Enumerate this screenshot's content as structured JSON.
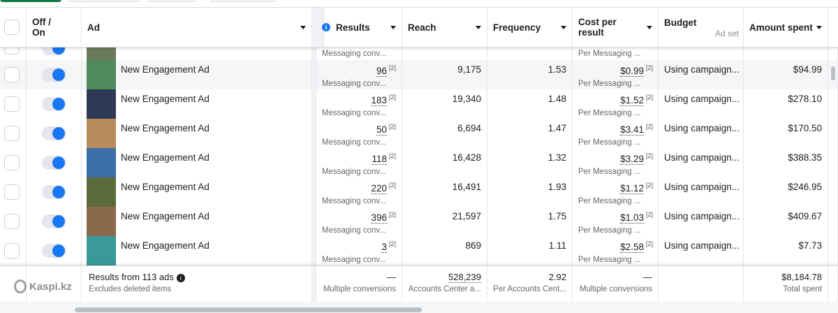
{
  "header": {
    "off_on": "Off / On",
    "ad": "Ad",
    "results": "Results",
    "reach": "Reach",
    "frequency": "Frequency",
    "cost_per_result": "Cost per result",
    "budget": "Budget",
    "budget_sub": "Ad set",
    "amount_spent": "Amount spent"
  },
  "partial_row": {
    "results_sub": "Messaging conv...",
    "cost_sub": "Per Messaging ..."
  },
  "rows": [
    {
      "name": "New Engagement Ad",
      "results": "96",
      "results_sub": "Messaging conv...",
      "reach": "9,175",
      "frequency": "1.53",
      "cost": "$0.99",
      "cost_sub": "Per Messaging ...",
      "budget": "Using campaign...",
      "spent": "$94.99",
      "thumb": "#4f8a5a",
      "note": "[2]"
    },
    {
      "name": "New Engagement Ad",
      "results": "183",
      "results_sub": "Messaging conv...",
      "reach": "19,340",
      "frequency": "1.48",
      "cost": "$1.52",
      "cost_sub": "Per Messaging ...",
      "budget": "Using campaign...",
      "spent": "$278.10",
      "thumb": "#2e3a55",
      "note": "[2]"
    },
    {
      "name": "New Engagement Ad",
      "results": "50",
      "results_sub": "Messaging conv...",
      "reach": "6,694",
      "frequency": "1.47",
      "cost": "$3.41",
      "cost_sub": "Per Messaging ...",
      "budget": "Using campaign...",
      "spent": "$170.50",
      "thumb": "#b98a5a",
      "note": "[2]"
    },
    {
      "name": "New Engagement Ad",
      "results": "118",
      "results_sub": "Messaging conv...",
      "reach": "16,428",
      "frequency": "1.32",
      "cost": "$3.29",
      "cost_sub": "Per Messaging ...",
      "budget": "Using campaign...",
      "spent": "$388.35",
      "thumb": "#3a6fa8",
      "note": "[2]"
    },
    {
      "name": "New Engagement Ad",
      "results": "220",
      "results_sub": "Messaging conv...",
      "reach": "16,491",
      "frequency": "1.93",
      "cost": "$1.12",
      "cost_sub": "Per Messaging ...",
      "budget": "Using campaign...",
      "spent": "$246.95",
      "thumb": "#5b6b3a",
      "note": "[2]"
    },
    {
      "name": "New Engagement Ad",
      "results": "396",
      "results_sub": "Messaging conv...",
      "reach": "21,597",
      "frequency": "1.75",
      "cost": "$1.03",
      "cost_sub": "Per Messaging ...",
      "budget": "Using campaign...",
      "spent": "$409.67",
      "thumb": "#8a6a4a",
      "note": "[2]"
    },
    {
      "name": "New Engagement Ad",
      "results": "3",
      "results_sub": "Messaging conv...",
      "reach": "869",
      "frequency": "1.11",
      "cost": "$2.58",
      "cost_sub": "Per Messaging ...",
      "budget": "Using campaign...",
      "spent": "$7.73",
      "thumb": "#3a9a9a",
      "note": "[2]"
    }
  ],
  "footer": {
    "title": "Results from 113 ads",
    "subtitle": "Excludes deleted items",
    "results": "—",
    "results_sub": "Multiple conversions",
    "reach": "528,239",
    "reach_sub": "Accounts Center a...",
    "frequency": "2.92",
    "frequency_sub": "Per Accounts Cent...",
    "cost": "—",
    "cost_sub": "Multiple conversions",
    "spent": "$8,184.78",
    "spent_sub": "Total spent"
  },
  "watermark": "Kaspi.kz",
  "colors": {
    "accent": "#1877f2"
  }
}
